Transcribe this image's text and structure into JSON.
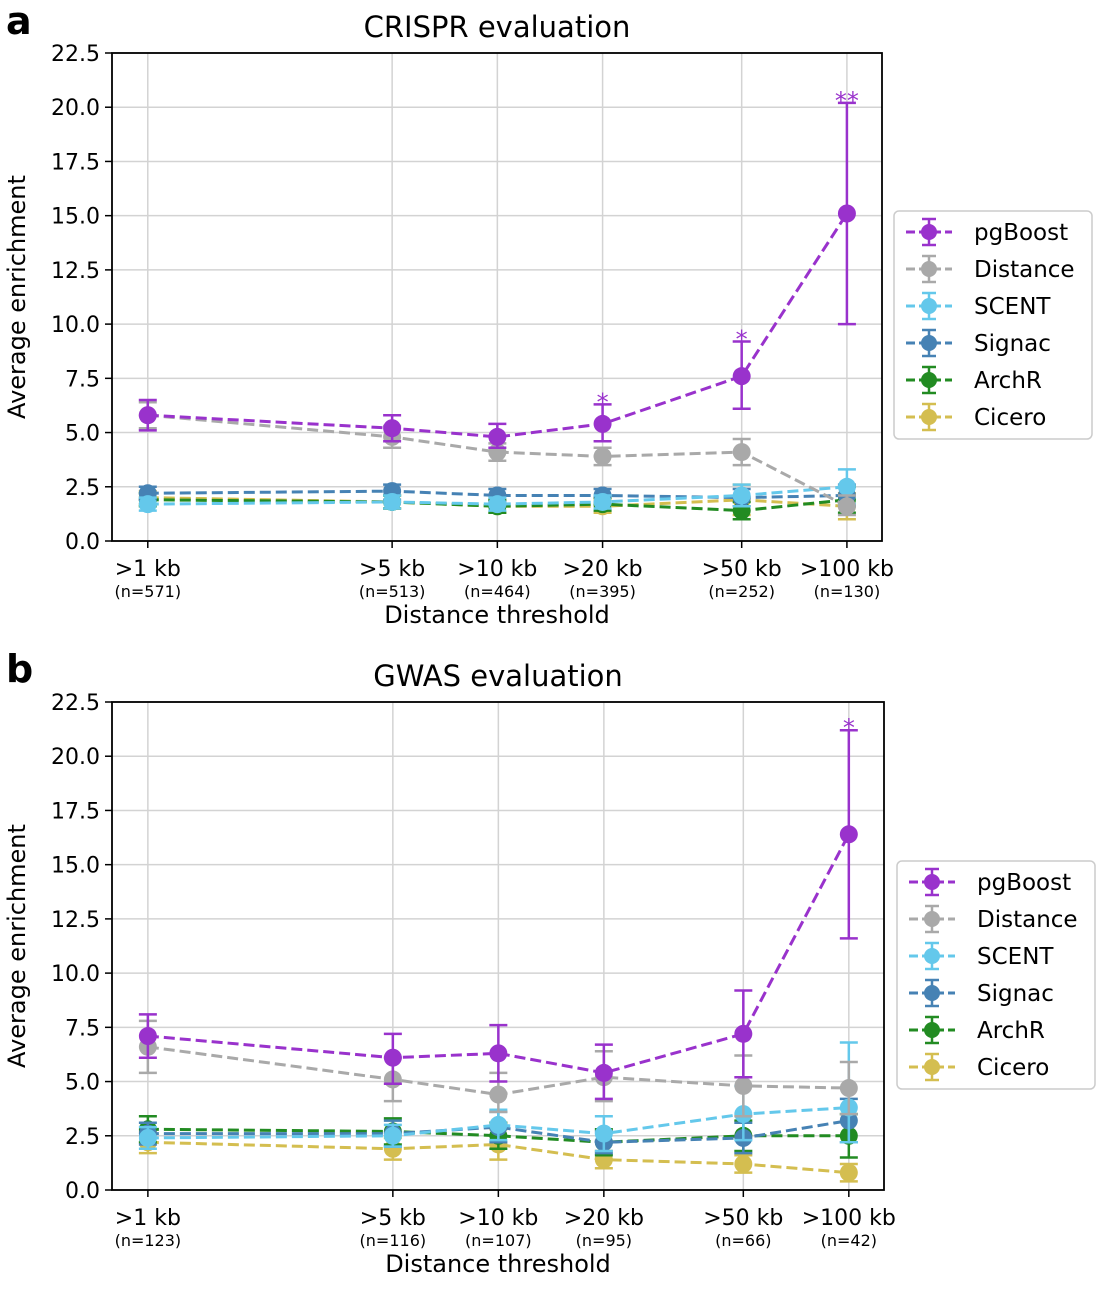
{
  "panels": [
    {
      "letter": "a",
      "chart_data": {
        "type": "line",
        "title": "CRISPR evaluation",
        "xlabel": "Distance threshold",
        "ylabel": "Average enrichment",
        "ylim": [
          0,
          22.5
        ],
        "yticks": [
          "0.0",
          "2.5",
          "5.0",
          "7.5",
          "10.0",
          "12.5",
          "15.0",
          "17.5",
          "20.0",
          "22.5"
        ],
        "x_positions_kb": [
          1,
          5,
          10,
          20,
          50,
          100
        ],
        "x_scale": "log",
        "categories": [
          ">1 kb",
          ">5 kb",
          ">10 kb",
          ">20 kb",
          ">50 kb",
          ">100 kb"
        ],
        "n_labels": [
          "(n=571)",
          "(n=513)",
          "(n=464)",
          "(n=395)",
          "(n=252)",
          "(n=130)"
        ],
        "grid": true,
        "legend_position": "center-right",
        "series": [
          {
            "name": "pgBoost",
            "color": "#9932cc",
            "values": [
              5.8,
              5.2,
              4.8,
              5.4,
              7.6,
              15.1
            ],
            "err_low": [
              5.1,
              4.6,
              4.3,
              4.6,
              6.1,
              10.0
            ],
            "err_high": [
              6.5,
              5.8,
              5.4,
              6.3,
              9.2,
              20.2
            ],
            "stars": [
              "",
              "",
              "",
              "*",
              "*",
              "**"
            ]
          },
          {
            "name": "Distance",
            "color": "#a9a9a9",
            "values": [
              5.8,
              4.8,
              4.1,
              3.9,
              4.1,
              1.6
            ],
            "err_low": [
              5.2,
              4.3,
              3.7,
              3.5,
              3.5,
              1.2
            ],
            "err_high": [
              6.4,
              5.3,
              4.5,
              4.3,
              4.7,
              2.1
            ]
          },
          {
            "name": "SCENT",
            "color": "#64c8eb",
            "values": [
              1.7,
              1.8,
              1.7,
              1.8,
              2.1,
              2.5
            ],
            "err_low": [
              1.4,
              1.5,
              1.4,
              1.5,
              1.6,
              1.7
            ],
            "err_high": [
              2.0,
              2.1,
              2.0,
              2.1,
              2.6,
              3.3
            ]
          },
          {
            "name": "Signac",
            "color": "#4682b4",
            "values": [
              2.2,
              2.3,
              2.1,
              2.1,
              2.0,
              2.1
            ],
            "err_low": [
              1.9,
              1.9,
              1.8,
              1.8,
              1.6,
              1.6
            ],
            "err_high": [
              2.5,
              2.6,
              2.4,
              2.4,
              2.4,
              2.6
            ]
          },
          {
            "name": "ArchR",
            "color": "#228b22",
            "values": [
              1.9,
              1.8,
              1.6,
              1.7,
              1.4,
              1.9
            ],
            "err_low": [
              1.6,
              1.5,
              1.3,
              1.4,
              1.0,
              1.3
            ],
            "err_high": [
              2.2,
              2.1,
              1.9,
              2.0,
              1.8,
              2.5
            ]
          },
          {
            "name": "Cicero",
            "color": "#d4be50",
            "values": [
              2.0,
              1.8,
              1.6,
              1.6,
              1.9,
              1.6
            ],
            "err_low": [
              1.7,
              1.5,
              1.3,
              1.3,
              1.2,
              1.0
            ],
            "err_high": [
              2.3,
              2.1,
              1.9,
              1.9,
              2.6,
              2.2
            ]
          }
        ]
      }
    },
    {
      "letter": "b",
      "chart_data": {
        "type": "line",
        "title": "GWAS evaluation",
        "xlabel": "Distance threshold",
        "ylabel": "Average enrichment",
        "ylim": [
          0,
          22.5
        ],
        "yticks": [
          "0.0",
          "2.5",
          "5.0",
          "7.5",
          "10.0",
          "12.5",
          "15.0",
          "17.5",
          "20.0",
          "22.5"
        ],
        "x_positions_kb": [
          1,
          5,
          10,
          20,
          50,
          100
        ],
        "x_scale": "log",
        "categories": [
          ">1 kb",
          ">5 kb",
          ">10 kb",
          ">20 kb",
          ">50 kb",
          ">100 kb"
        ],
        "n_labels": [
          "(n=123)",
          "(n=116)",
          "(n=107)",
          "(n=95)",
          "(n=66)",
          "(n=42)"
        ],
        "grid": true,
        "legend_position": "center-right",
        "series": [
          {
            "name": "pgBoost",
            "color": "#9932cc",
            "values": [
              7.1,
              6.1,
              6.3,
              5.4,
              7.2,
              16.4
            ],
            "err_low": [
              6.1,
              4.9,
              5.0,
              4.2,
              5.2,
              11.6
            ],
            "err_high": [
              8.1,
              7.2,
              7.6,
              6.7,
              9.2,
              21.2
            ],
            "stars": [
              "",
              "",
              "",
              "",
              "",
              "*"
            ]
          },
          {
            "name": "Distance",
            "color": "#a9a9a9",
            "values": [
              6.6,
              5.1,
              4.4,
              5.2,
              4.8,
              4.7
            ],
            "err_low": [
              5.4,
              4.1,
              3.6,
              4.1,
              3.4,
              3.5
            ],
            "err_high": [
              7.8,
              6.1,
              5.4,
              6.4,
              6.2,
              5.9
            ]
          },
          {
            "name": "SCENT",
            "color": "#64c8eb",
            "values": [
              2.4,
              2.5,
              3.0,
              2.6,
              3.5,
              3.8
            ],
            "err_low": [
              1.9,
              2.0,
              2.3,
              1.8,
              2.3,
              2.2
            ],
            "err_high": [
              2.9,
              3.0,
              3.7,
              3.4,
              4.8,
              6.8
            ]
          },
          {
            "name": "Signac",
            "color": "#4682b4",
            "values": [
              2.6,
              2.6,
              2.9,
              2.2,
              2.4,
              3.2
            ],
            "err_low": [
              2.1,
              2.0,
              2.2,
              1.7,
              1.7,
              2.2
            ],
            "err_high": [
              3.1,
              3.2,
              3.6,
              2.7,
              3.1,
              4.2
            ]
          },
          {
            "name": "ArchR",
            "color": "#228b22",
            "values": [
              2.8,
              2.7,
              2.5,
              2.2,
              2.5,
              2.5
            ],
            "err_low": [
              2.2,
              2.1,
              1.9,
              1.6,
              1.8,
              1.5
            ],
            "err_high": [
              3.4,
              3.3,
              3.1,
              2.8,
              3.2,
              3.5
            ]
          },
          {
            "name": "Cicero",
            "color": "#d4be50",
            "values": [
              2.2,
              1.9,
              2.1,
              1.4,
              1.2,
              0.8
            ],
            "err_low": [
              1.7,
              1.4,
              1.4,
              1.0,
              0.8,
              0.4
            ],
            "err_high": [
              2.7,
              2.4,
              2.8,
              1.8,
              1.6,
              1.2
            ]
          }
        ]
      }
    }
  ]
}
